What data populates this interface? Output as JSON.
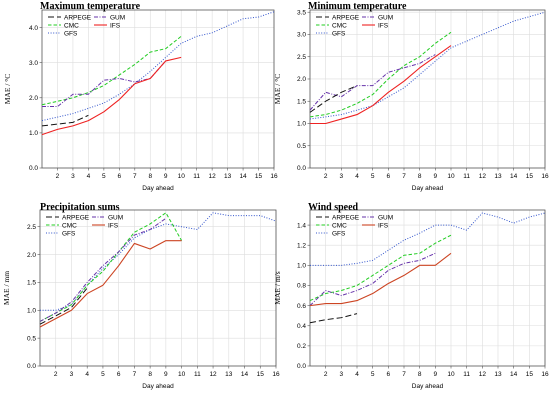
{
  "chart_data": [
    {
      "type": "line",
      "title": "Maximum  temperature",
      "xlabel": "Day ahead",
      "ylabel": "MAE / °C",
      "x_ticks": [
        2,
        3,
        4,
        5,
        6,
        7,
        8,
        9,
        10,
        11,
        12,
        13,
        14,
        15,
        16
      ],
      "xlim": [
        1,
        16
      ],
      "ylim": [
        0.0,
        4.5
      ],
      "y_ticks": [
        0.0,
        1.0,
        2.0,
        3.0,
        4.0
      ],
      "y_tick_labels": [
        "0.0",
        "1.0",
        "2.0",
        "3.0",
        "4.0"
      ],
      "grid": true,
      "legend_position": "top-left",
      "legend_entries": [
        "ARPEGE",
        "CMC",
        "GFS",
        "GUM",
        "IFS"
      ],
      "series": [
        {
          "name": "ARPEGE",
          "color": "#111111",
          "style": "longdash",
          "x": [
            1,
            2,
            3,
            4
          ],
          "y": [
            1.2,
            1.25,
            1.3,
            1.5
          ]
        },
        {
          "name": "CMC",
          "color": "#22cc22",
          "style": "dash",
          "x": [
            1,
            2,
            3,
            4,
            5,
            6,
            7,
            8,
            9,
            10
          ],
          "y": [
            1.8,
            1.9,
            2.0,
            2.15,
            2.35,
            2.65,
            2.95,
            3.3,
            3.4,
            3.75
          ]
        },
        {
          "name": "GFS",
          "color": "#3355cc",
          "style": "dot",
          "x": [
            1,
            2,
            3,
            4,
            5,
            6,
            7,
            8,
            9,
            10,
            11,
            12,
            13,
            14,
            15,
            16
          ],
          "y": [
            1.35,
            1.45,
            1.55,
            1.7,
            1.85,
            2.1,
            2.4,
            2.75,
            3.15,
            3.55,
            3.75,
            3.85,
            4.05,
            4.25,
            4.3,
            4.45
          ]
        },
        {
          "name": "GUM",
          "color": "#6633aa",
          "style": "dashdot",
          "x": [
            1,
            2,
            3,
            4,
            5,
            6,
            7,
            8,
            9
          ],
          "y": [
            1.75,
            1.75,
            2.1,
            2.1,
            2.5,
            2.55,
            2.45,
            2.55,
            3.05
          ]
        },
        {
          "name": "IFS",
          "color": "#ee2222",
          "style": "solid",
          "x": [
            1,
            2,
            3,
            4,
            5,
            6,
            7,
            8,
            9,
            10
          ],
          "y": [
            0.95,
            1.1,
            1.2,
            1.35,
            1.6,
            1.95,
            2.4,
            2.55,
            3.05,
            3.15
          ]
        }
      ]
    },
    {
      "type": "line",
      "title": "Minimum  temperature",
      "xlabel": "Day ahead",
      "ylabel": "MAE / °C",
      "x_ticks": [
        2,
        3,
        4,
        5,
        6,
        7,
        8,
        9,
        10,
        11,
        12,
        13,
        14,
        15,
        16
      ],
      "xlim": [
        1,
        16
      ],
      "ylim": [
        0.0,
        3.55
      ],
      "y_ticks": [
        0.0,
        0.5,
        1.0,
        1.5,
        2.0,
        2.5,
        3.0,
        3.5
      ],
      "y_tick_labels": [
        "0.0",
        "0.5",
        "1.0",
        "1.5",
        "2.0",
        "2.5",
        "3.0",
        "3.5"
      ],
      "grid": true,
      "legend_position": "top-left",
      "legend_entries": [
        "ARPEGE",
        "CMC",
        "GFS",
        "GUM",
        "IFS"
      ],
      "series": [
        {
          "name": "ARPEGE",
          "color": "#111111",
          "style": "longdash",
          "x": [
            1,
            2,
            3,
            4
          ],
          "y": [
            1.25,
            1.5,
            1.7,
            1.85
          ]
        },
        {
          "name": "CMC",
          "color": "#22cc22",
          "style": "dash",
          "x": [
            1,
            2,
            3,
            4,
            5,
            6,
            7,
            8,
            9,
            10
          ],
          "y": [
            1.15,
            1.2,
            1.3,
            1.45,
            1.65,
            2.0,
            2.3,
            2.5,
            2.8,
            3.05
          ]
        },
        {
          "name": "GFS",
          "color": "#3355cc",
          "style": "dot",
          "x": [
            1,
            2,
            3,
            4,
            5,
            6,
            7,
            8,
            9,
            10,
            11,
            12,
            13,
            14,
            15,
            16
          ],
          "y": [
            1.1,
            1.15,
            1.2,
            1.3,
            1.4,
            1.6,
            1.8,
            2.1,
            2.4,
            2.7,
            2.85,
            3.0,
            3.15,
            3.3,
            3.4,
            3.5
          ]
        },
        {
          "name": "GUM",
          "color": "#6633aa",
          "style": "dashdot",
          "x": [
            1,
            2,
            3,
            4,
            5,
            6,
            7,
            8,
            9
          ],
          "y": [
            1.3,
            1.7,
            1.6,
            1.85,
            1.85,
            2.15,
            2.25,
            2.35,
            2.55
          ]
        },
        {
          "name": "IFS",
          "color": "#ee2222",
          "style": "solid",
          "x": [
            1,
            2,
            3,
            4,
            5,
            6,
            7,
            8,
            9,
            10
          ],
          "y": [
            1.0,
            1.0,
            1.1,
            1.2,
            1.4,
            1.7,
            1.95,
            2.25,
            2.5,
            2.75
          ]
        }
      ]
    },
    {
      "type": "line",
      "title": "Precipitation sums",
      "xlabel": "Day ahead",
      "ylabel": "MAE / mm",
      "x_ticks": [
        2,
        3,
        4,
        5,
        6,
        7,
        8,
        9,
        10,
        11,
        12,
        13,
        14,
        15,
        16
      ],
      "xlim": [
        1,
        16
      ],
      "ylim": [
        0.0,
        2.8
      ],
      "y_ticks": [
        0.0,
        0.5,
        1.0,
        1.5,
        2.0,
        2.5
      ],
      "y_tick_labels": [
        "0.0",
        "0.5",
        "1.0",
        "1.5",
        "2.0",
        "2.5"
      ],
      "grid": true,
      "legend_position": "top-left",
      "legend_entries": [
        "ARPEGE",
        "CMC",
        "GFS",
        "GUM",
        "IFS"
      ],
      "series": [
        {
          "name": "ARPEGE",
          "color": "#111111",
          "style": "longdash",
          "x": [
            1,
            2,
            3,
            4
          ],
          "y": [
            0.75,
            0.9,
            1.05,
            1.4
          ]
        },
        {
          "name": "CMC",
          "color": "#22cc22",
          "style": "dash",
          "x": [
            1,
            2,
            3,
            4,
            5,
            6,
            7,
            8,
            9,
            10
          ],
          "y": [
            0.8,
            0.95,
            1.1,
            1.45,
            1.7,
            2.05,
            2.4,
            2.55,
            2.75,
            2.25
          ]
        },
        {
          "name": "GFS",
          "color": "#3355cc",
          "style": "dot",
          "x": [
            1,
            2,
            3,
            4,
            5,
            6,
            7,
            8,
            9,
            10,
            11,
            12,
            13,
            14,
            15,
            16
          ],
          "y": [
            1.0,
            1.0,
            1.1,
            1.45,
            1.75,
            2.0,
            2.3,
            2.45,
            2.55,
            2.5,
            2.45,
            2.75,
            2.7,
            2.7,
            2.7,
            2.6
          ]
        },
        {
          "name": "GUM",
          "color": "#6633aa",
          "style": "dashdot",
          "x": [
            1,
            2,
            3,
            4,
            5,
            6,
            7,
            8,
            9
          ],
          "y": [
            0.8,
            0.95,
            1.15,
            1.5,
            1.8,
            2.05,
            2.35,
            2.45,
            2.65
          ]
        },
        {
          "name": "IFS",
          "color": "#cc4422",
          "style": "solid",
          "x": [
            1,
            2,
            3,
            4,
            5,
            6,
            7,
            8,
            9,
            10
          ],
          "y": [
            0.7,
            0.85,
            1.0,
            1.3,
            1.45,
            1.8,
            2.2,
            2.1,
            2.25,
            2.25
          ]
        }
      ]
    },
    {
      "type": "line",
      "title": "Wind speed",
      "xlabel": "Day ahead",
      "ylabel": "MAE / m/s",
      "x_ticks": [
        2,
        3,
        4,
        5,
        6,
        7,
        8,
        9,
        10,
        11,
        12,
        13,
        14,
        15,
        16
      ],
      "xlim": [
        1,
        16
      ],
      "ylim": [
        0.0,
        1.55
      ],
      "y_ticks": [
        0.0,
        0.2,
        0.4,
        0.6,
        0.8,
        1.0,
        1.2,
        1.4
      ],
      "y_tick_labels": [
        "0.0",
        "0.2",
        "0.4",
        "0.6",
        "0.8",
        "1.0",
        "1.2",
        "1.4"
      ],
      "grid": true,
      "legend_position": "top-left",
      "legend_entries": [
        "ARPEGE",
        "CMC",
        "GFS",
        "GUM",
        "IFS"
      ],
      "series": [
        {
          "name": "ARPEGE",
          "color": "#111111",
          "style": "longdash",
          "x": [
            1,
            2,
            3,
            4
          ],
          "y": [
            0.43,
            0.46,
            0.48,
            0.52
          ]
        },
        {
          "name": "CMC",
          "color": "#22cc22",
          "style": "dash",
          "x": [
            1,
            2,
            3,
            4,
            5,
            6,
            7,
            8,
            9,
            10
          ],
          "y": [
            0.65,
            0.72,
            0.75,
            0.8,
            0.9,
            1.0,
            1.1,
            1.12,
            1.22,
            1.3
          ]
        },
        {
          "name": "GFS",
          "color": "#3355cc",
          "style": "dot",
          "x": [
            1,
            2,
            3,
            4,
            5,
            6,
            7,
            8,
            9,
            10,
            11,
            12,
            13,
            14,
            15,
            16
          ],
          "y": [
            1.0,
            1.0,
            1.0,
            1.02,
            1.05,
            1.15,
            1.25,
            1.32,
            1.4,
            1.4,
            1.35,
            1.52,
            1.48,
            1.42,
            1.48,
            1.52
          ]
        },
        {
          "name": "GUM",
          "color": "#6633aa",
          "style": "dashdot",
          "x": [
            1,
            2,
            3,
            4,
            5,
            6,
            7,
            8,
            9
          ],
          "y": [
            0.6,
            0.75,
            0.7,
            0.75,
            0.82,
            0.95,
            1.02,
            1.05,
            1.12
          ]
        },
        {
          "name": "IFS",
          "color": "#cc4422",
          "style": "solid",
          "x": [
            1,
            2,
            3,
            4,
            5,
            6,
            7,
            8,
            9,
            10
          ],
          "y": [
            0.6,
            0.62,
            0.62,
            0.65,
            0.72,
            0.82,
            0.9,
            1.0,
            1.0,
            1.12
          ]
        }
      ]
    }
  ]
}
